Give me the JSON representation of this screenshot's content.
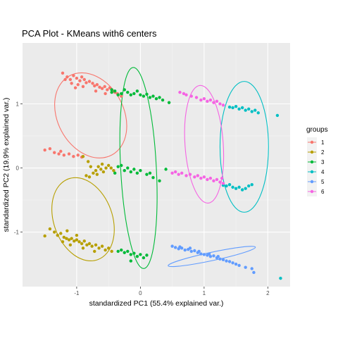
{
  "chart_data": {
    "type": "scatter",
    "title": "PCA Plot - KMeans with6 centers",
    "xlabel": "standardized PC1 (55.4% explained var.)",
    "ylabel": "standardized PC2 (19.9% explained var.)",
    "xlim": [
      -1.85,
      2.35
    ],
    "ylim": [
      -1.85,
      1.95
    ],
    "x_ticks": [
      -1,
      0,
      1,
      2
    ],
    "y_ticks": [
      -1,
      0,
      1
    ],
    "x_tick_labels": [
      "-1",
      "0",
      "1",
      "2"
    ],
    "y_tick_labels": [
      "-1",
      "0",
      "1"
    ],
    "grid": true,
    "legend": {
      "title": "groups",
      "position": "right"
    },
    "series": [
      {
        "name": "1",
        "color": "#F8766D",
        "ellipse": {
          "cx": -0.78,
          "cy": 0.82,
          "rx": 0.52,
          "ry": 0.7,
          "angle": 28
        },
        "points": [
          [
            -1.22,
            1.48
          ],
          [
            -1.15,
            1.42
          ],
          [
            -1.1,
            1.38
          ],
          [
            -1.05,
            1.44
          ],
          [
            -1.0,
            1.4
          ],
          [
            -0.95,
            1.36
          ],
          [
            -0.92,
            1.42
          ],
          [
            -0.88,
            1.38
          ],
          [
            -0.85,
            1.33
          ],
          [
            -0.8,
            1.35
          ],
          [
            -0.75,
            1.32
          ],
          [
            -0.72,
            1.28
          ],
          [
            -0.68,
            1.3
          ],
          [
            -0.64,
            1.26
          ],
          [
            -0.6,
            1.24
          ],
          [
            -0.56,
            1.27
          ],
          [
            -0.52,
            1.22
          ],
          [
            -0.48,
            1.25
          ],
          [
            -0.44,
            1.2
          ],
          [
            -0.4,
            1.18
          ],
          [
            -0.36,
            1.16
          ],
          [
            -0.3,
            1.12
          ],
          [
            -1.18,
            1.38
          ],
          [
            -1.08,
            1.32
          ],
          [
            -0.98,
            1.3
          ],
          [
            -0.9,
            1.27
          ],
          [
            -1.02,
            1.25
          ],
          [
            -0.7,
            1.2
          ],
          [
            -0.55,
            1.16
          ],
          [
            -1.5,
            0.28
          ],
          [
            -1.42,
            0.3
          ],
          [
            -1.35,
            0.24
          ],
          [
            -1.28,
            0.22
          ],
          [
            -1.2,
            0.2
          ],
          [
            -1.12,
            0.22
          ],
          [
            -1.05,
            0.18
          ],
          [
            -0.98,
            0.2
          ],
          [
            -0.92,
            0.17
          ],
          [
            -1.25,
            0.26
          ]
        ]
      },
      {
        "name": "2",
        "color": "#B79F00",
        "ellipse": {
          "cx": -0.9,
          "cy": -0.8,
          "rx": 0.46,
          "ry": 0.67,
          "angle": 20
        },
        "points": [
          [
            -1.42,
            -0.95
          ],
          [
            -1.35,
            -1.0
          ],
          [
            -1.3,
            -1.05
          ],
          [
            -1.25,
            -1.02
          ],
          [
            -1.2,
            -1.08
          ],
          [
            -1.16,
            -1.1
          ],
          [
            -1.12,
            -1.12
          ],
          [
            -1.08,
            -1.1
          ],
          [
            -1.04,
            -1.14
          ],
          [
            -1.0,
            -1.12
          ],
          [
            -0.96,
            -1.15
          ],
          [
            -0.92,
            -1.18
          ],
          [
            -0.88,
            -1.14
          ],
          [
            -0.84,
            -1.2
          ],
          [
            -0.8,
            -1.18
          ],
          [
            -0.76,
            -1.22
          ],
          [
            -0.7,
            -1.2
          ],
          [
            -0.65,
            -1.25
          ],
          [
            -0.6,
            -1.22
          ],
          [
            -0.55,
            -1.28
          ],
          [
            -0.5,
            -1.25
          ],
          [
            -0.45,
            -1.3
          ],
          [
            -1.5,
            -1.06
          ],
          [
            -1.22,
            -1.15
          ],
          [
            -1.1,
            -1.2
          ],
          [
            -1.0,
            -1.05
          ],
          [
            -1.15,
            -0.98
          ],
          [
            -0.9,
            -1.25
          ],
          [
            -0.72,
            -1.3
          ],
          [
            -0.85,
            -0.12
          ],
          [
            -0.8,
            -0.14
          ],
          [
            -0.74,
            -0.08
          ],
          [
            -0.7,
            -0.04
          ],
          [
            -0.66,
            0.02
          ],
          [
            -0.62,
            -0.02
          ],
          [
            -0.58,
            -0.06
          ],
          [
            -0.54,
            0.0
          ],
          [
            -0.5,
            0.04
          ],
          [
            -0.46,
            0.0
          ],
          [
            -0.42,
            -0.04
          ],
          [
            -0.6,
            0.06
          ],
          [
            -0.78,
            0.02
          ],
          [
            -0.68,
            -0.1
          ],
          [
            -0.9,
            0.18
          ],
          [
            -0.82,
            0.1
          ]
        ]
      },
      {
        "name": "3",
        "color": "#00BA38",
        "ellipse": {
          "cx": -0.03,
          "cy": 0.0,
          "rx": 0.28,
          "ry": 1.57,
          "angle": 3
        },
        "points": [
          [
            -0.45,
            1.18
          ],
          [
            -0.4,
            1.2
          ],
          [
            -0.35,
            1.14
          ],
          [
            -0.3,
            1.16
          ],
          [
            -0.25,
            1.22
          ],
          [
            -0.2,
            1.18
          ],
          [
            -0.15,
            1.14
          ],
          [
            -0.1,
            1.16
          ],
          [
            -0.05,
            1.2
          ],
          [
            0.0,
            1.14
          ],
          [
            0.05,
            1.12
          ],
          [
            0.1,
            1.15
          ],
          [
            0.15,
            1.1
          ],
          [
            0.2,
            1.12
          ],
          [
            0.25,
            1.08
          ],
          [
            0.3,
            1.1
          ],
          [
            0.35,
            1.06
          ],
          [
            0.45,
            1.02
          ],
          [
            -0.45,
            1.22
          ],
          [
            0.4,
            -0.02
          ],
          [
            -0.4,
            -0.08
          ],
          [
            -0.35,
            0.02
          ],
          [
            -0.3,
            0.04
          ],
          [
            -0.25,
            -0.04
          ],
          [
            -0.2,
            0.0
          ],
          [
            -0.15,
            -0.06
          ],
          [
            -0.1,
            -0.02
          ],
          [
            -0.05,
            -0.08
          ],
          [
            0.0,
            -0.04
          ],
          [
            0.1,
            -0.1
          ],
          [
            0.15,
            -0.08
          ],
          [
            0.2,
            -0.15
          ],
          [
            0.3,
            -0.2
          ],
          [
            -0.3,
            -1.28
          ],
          [
            -0.25,
            -1.32
          ],
          [
            -0.2,
            -1.3
          ],
          [
            -0.15,
            -1.35
          ],
          [
            -0.1,
            -1.33
          ],
          [
            -0.05,
            -1.38
          ],
          [
            0.0,
            -1.35
          ],
          [
            0.05,
            -1.4
          ],
          [
            0.1,
            -1.36
          ],
          [
            -0.15,
            -1.45
          ],
          [
            -0.35,
            -1.3
          ]
        ]
      },
      {
        "name": "4",
        "color": "#00BFC4",
        "ellipse": {
          "cx": 1.63,
          "cy": 0.33,
          "rx": 0.38,
          "ry": 1.02,
          "angle": 0
        },
        "points": [
          [
            1.4,
            0.95
          ],
          [
            1.45,
            0.94
          ],
          [
            1.5,
            0.96
          ],
          [
            1.55,
            0.92
          ],
          [
            1.6,
            0.94
          ],
          [
            1.65,
            0.9
          ],
          [
            1.7,
            0.92
          ],
          [
            1.75,
            0.88
          ],
          [
            1.8,
            0.9
          ],
          [
            1.85,
            0.86
          ],
          [
            2.15,
            0.82
          ],
          [
            1.3,
            -0.27
          ],
          [
            1.35,
            -0.28
          ],
          [
            1.4,
            -0.26
          ],
          [
            1.45,
            -0.3
          ],
          [
            1.5,
            -0.32
          ],
          [
            1.55,
            -0.3
          ],
          [
            1.6,
            -0.34
          ],
          [
            1.65,
            -0.32
          ],
          [
            1.7,
            -0.28
          ],
          [
            1.75,
            -0.26
          ],
          [
            2.2,
            -1.72
          ]
        ]
      },
      {
        "name": "5",
        "color": "#619CFF",
        "ellipse": {
          "cx": 1.12,
          "cy": -1.38,
          "rx": 0.7,
          "ry": 0.065,
          "angle": 12
        },
        "points": [
          [
            0.5,
            -1.22
          ],
          [
            0.55,
            -1.24
          ],
          [
            0.6,
            -1.26
          ],
          [
            0.65,
            -1.25
          ],
          [
            0.7,
            -1.28
          ],
          [
            0.75,
            -1.27
          ],
          [
            0.8,
            -1.3
          ],
          [
            0.85,
            -1.29
          ],
          [
            0.9,
            -1.32
          ],
          [
            0.95,
            -1.34
          ],
          [
            1.0,
            -1.35
          ],
          [
            1.05,
            -1.36
          ],
          [
            1.1,
            -1.38
          ],
          [
            1.15,
            -1.37
          ],
          [
            1.2,
            -1.4
          ],
          [
            1.25,
            -1.42
          ],
          [
            1.3,
            -1.43
          ],
          [
            1.35,
            -1.45
          ],
          [
            1.4,
            -1.46
          ],
          [
            1.45,
            -1.48
          ],
          [
            1.5,
            -1.5
          ],
          [
            1.55,
            -1.52
          ],
          [
            1.65,
            -1.55
          ],
          [
            1.75,
            -1.57
          ],
          [
            1.78,
            -1.63
          ],
          [
            0.62,
            -1.23
          ],
          [
            0.78,
            -1.25
          ],
          [
            0.92,
            -1.3
          ],
          [
            1.08,
            -1.34
          ],
          [
            1.22,
            -1.38
          ]
        ]
      },
      {
        "name": "6",
        "color": "#F564E3",
        "ellipse": {
          "cx": 1.0,
          "cy": 0.37,
          "rx": 0.3,
          "ry": 0.92,
          "angle": 4
        },
        "points": [
          [
            0.62,
            1.18
          ],
          [
            0.68,
            1.16
          ],
          [
            0.72,
            1.14
          ],
          [
            0.8,
            1.12
          ],
          [
            0.88,
            1.1
          ],
          [
            0.95,
            1.06
          ],
          [
            1.0,
            1.08
          ],
          [
            1.05,
            1.04
          ],
          [
            1.1,
            1.06
          ],
          [
            1.15,
            1.02
          ],
          [
            1.2,
            1.04
          ],
          [
            1.25,
            1.0
          ],
          [
            1.3,
            0.98
          ],
          [
            0.5,
            -0.08
          ],
          [
            0.55,
            -0.06
          ],
          [
            0.6,
            -0.1
          ],
          [
            0.65,
            -0.08
          ],
          [
            0.72,
            -0.12
          ],
          [
            0.78,
            -0.1
          ],
          [
            0.85,
            -0.14
          ],
          [
            0.9,
            -0.12
          ],
          [
            0.95,
            -0.16
          ],
          [
            1.0,
            -0.14
          ],
          [
            1.05,
            -0.18
          ],
          [
            1.1,
            -0.16
          ],
          [
            1.15,
            -0.2
          ],
          [
            1.2,
            -0.18
          ],
          [
            1.25,
            -0.22
          ],
          [
            1.3,
            -0.24
          ],
          [
            1.28,
            -0.16
          ]
        ]
      }
    ]
  }
}
